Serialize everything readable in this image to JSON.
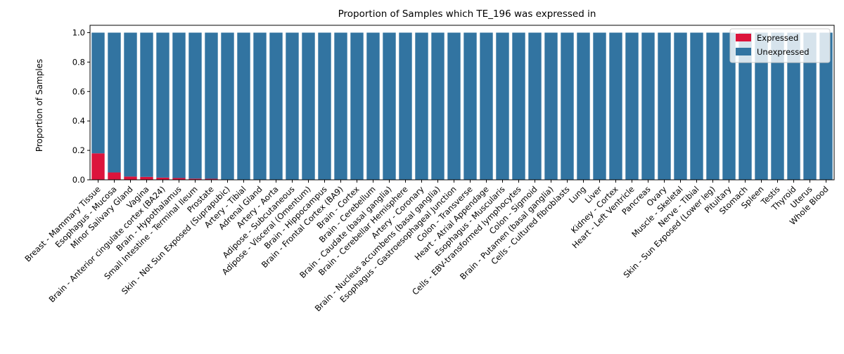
{
  "chart_data": {
    "type": "bar",
    "stacked": true,
    "title": "Proportion of Samples which TE_196 was expressed in",
    "xlabel": "",
    "ylabel": "Proportion of Samples",
    "ylim": [
      0,
      1.05
    ],
    "yticks": [
      "0.0",
      "0.2",
      "0.4",
      "0.6",
      "0.8",
      "1.0"
    ],
    "grid": false,
    "legend_position": "top-right",
    "categories": [
      "Breast - Mammary Tissue",
      "Esophagus - Mucosa",
      "Minor Salivary Gland",
      "Vagina",
      "Brain - Anterior cingulate cortex (BA24)",
      "Brain - Hypothalamus",
      "Small Intestine - Terminal Ileum",
      "Prostate",
      "Skin - Not Sun Exposed (Suprapubic)",
      "Artery - Tibial",
      "Adrenal Gland",
      "Artery - Aorta",
      "Adipose - Subcutaneous",
      "Adipose - Visceral (Omentum)",
      "Brain - Hippocampus",
      "Brain - Frontal Cortex (BA9)",
      "Brain - Cortex",
      "Brain - Cerebellum",
      "Brain - Caudate (basal ganglia)",
      "Brain - Cerebellar Hemisphere",
      "Artery - Coronary",
      "Brain - Nucleus accumbens (basal ganglia)",
      "Esophagus - Gastroesophageal Junction",
      "Colon - Transverse",
      "Heart - Atrial Appendage",
      "Esophagus - Muscularis",
      "Cells - EBV-transformed lymphocytes",
      "Colon - Sigmoid",
      "Brain - Putamen (basal ganglia)",
      "Cells - Cultured fibroblasts",
      "Lung",
      "Liver",
      "Kidney - Cortex",
      "Heart - Left Ventricle",
      "Pancreas",
      "Ovary",
      "Muscle - Skeletal",
      "Nerve - Tibial",
      "Skin - Sun Exposed (Lower leg)",
      "Pituitary",
      "Stomach",
      "Spleen",
      "Testis",
      "Thyroid",
      "Uterus",
      "Whole Blood"
    ],
    "series": [
      {
        "name": "Expressed",
        "color": "#dc143c",
        "values": [
          0.18,
          0.05,
          0.022,
          0.02,
          0.015,
          0.012,
          0.008,
          0.007,
          0.0,
          0.0,
          0.0,
          0.0,
          0.0,
          0.0,
          0.0,
          0.0,
          0.0,
          0.0,
          0.0,
          0.0,
          0.0,
          0.0,
          0.0,
          0.0,
          0.0,
          0.0,
          0.0,
          0.0,
          0.0,
          0.0,
          0.0,
          0.0,
          0.0,
          0.0,
          0.0,
          0.0,
          0.0,
          0.0,
          0.0,
          0.0,
          0.0,
          0.0,
          0.0,
          0.0,
          0.0,
          0.0
        ]
      },
      {
        "name": "Unexpressed",
        "color": "#3274a1",
        "values": [
          0.82,
          0.95,
          0.978,
          0.98,
          0.985,
          0.988,
          0.992,
          0.993,
          1.0,
          1.0,
          1.0,
          1.0,
          1.0,
          1.0,
          1.0,
          1.0,
          1.0,
          1.0,
          1.0,
          1.0,
          1.0,
          1.0,
          1.0,
          1.0,
          1.0,
          1.0,
          1.0,
          1.0,
          1.0,
          1.0,
          1.0,
          1.0,
          1.0,
          1.0,
          1.0,
          1.0,
          1.0,
          1.0,
          1.0,
          1.0,
          1.0,
          1.0,
          1.0,
          1.0,
          1.0,
          1.0
        ]
      }
    ]
  }
}
